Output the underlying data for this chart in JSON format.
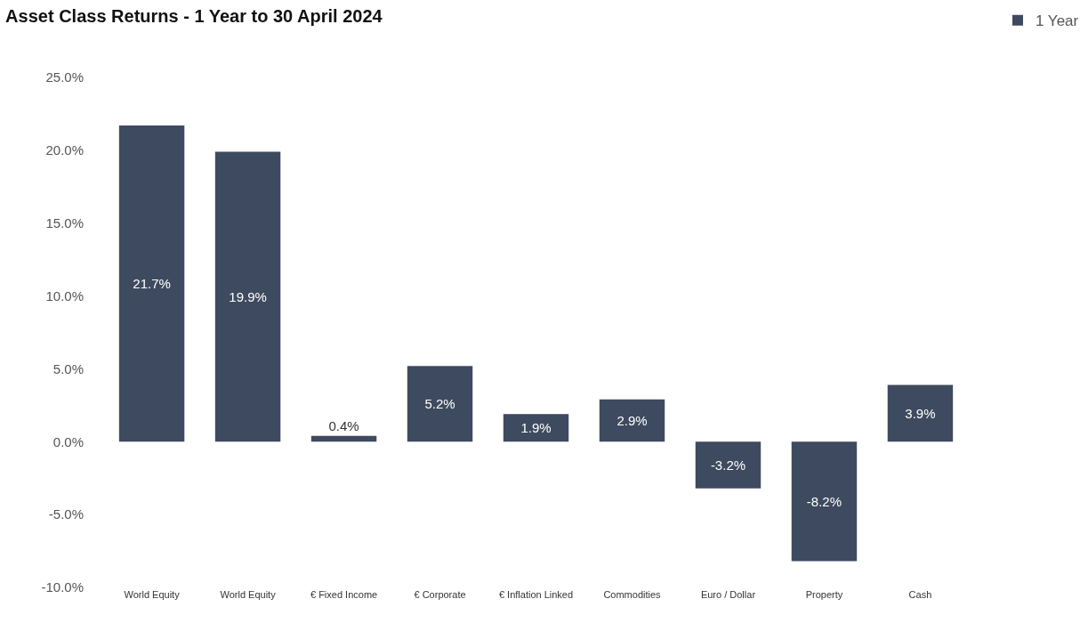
{
  "chart_data": {
    "type": "bar",
    "title": "Asset Class Returns - 1 Year to 30 April 2024",
    "categories": [
      "World Equity",
      "World Equity",
      "€ Fixed Income",
      "€ Corporate",
      "€ Inflation Linked",
      "Commodities",
      "Euro / Dollar",
      "Property",
      "Cash"
    ],
    "series": [
      {
        "name": "1 Year",
        "color": "#3e4a5f",
        "values": [
          21.7,
          19.9,
          0.4,
          5.2,
          1.9,
          2.9,
          -3.2,
          -8.2,
          3.9
        ],
        "value_labels": [
          "21.7%",
          "19.9%",
          "0.4%",
          "5.2%",
          "1.9%",
          "2.9%",
          "-3.2%",
          "-8.2%",
          "3.9%"
        ]
      }
    ],
    "ylim": [
      -10,
      25
    ],
    "yticks": [
      {
        "value": -10,
        "label": "-10.0%"
      },
      {
        "value": -5,
        "label": "-5.0%"
      },
      {
        "value": 0,
        "label": "0.0%"
      },
      {
        "value": 5,
        "label": "5.0%"
      },
      {
        "value": 10,
        "label": "10.0%"
      },
      {
        "value": 15,
        "label": "15.0%"
      },
      {
        "value": 20,
        "label": "20.0%"
      },
      {
        "value": 25,
        "label": "25.0%"
      }
    ],
    "grid": false,
    "legend": "top right"
  }
}
